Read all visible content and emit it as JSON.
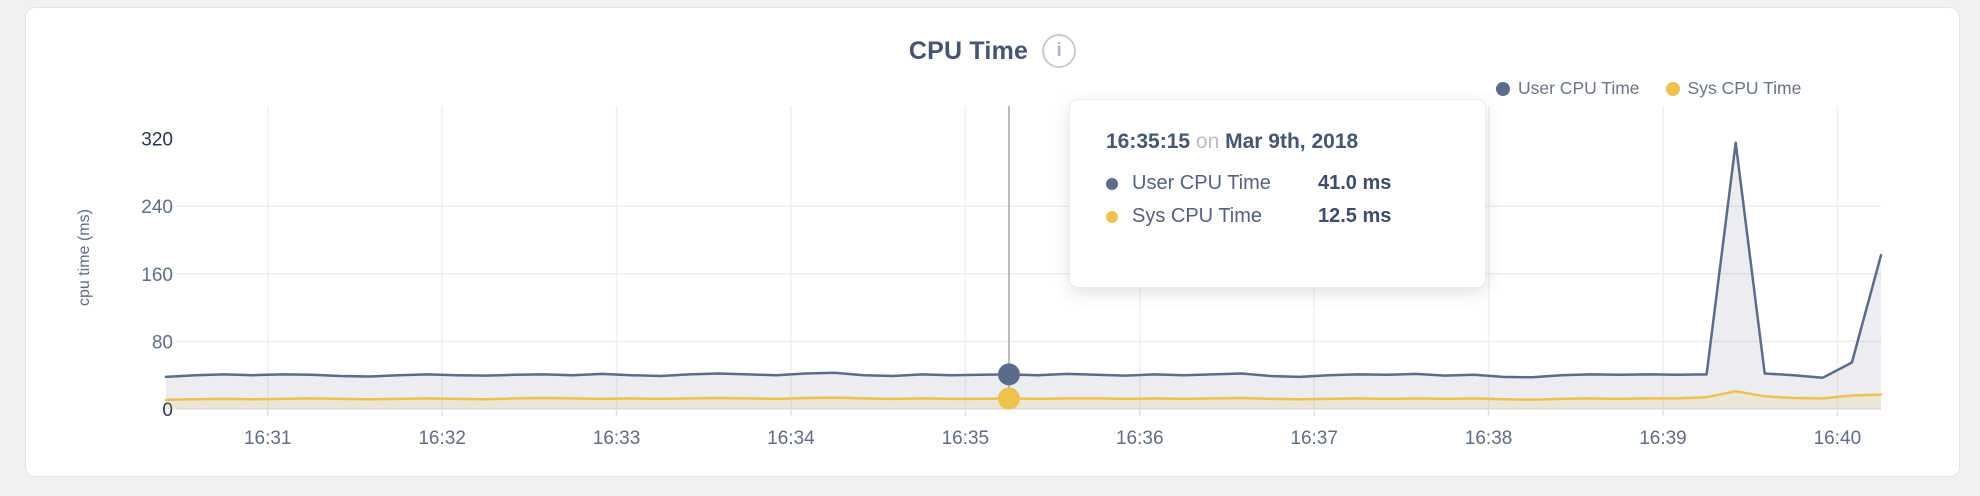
{
  "header": {
    "title": "CPU Time",
    "info_icon": "i"
  },
  "legend": [
    {
      "label": "User CPU Time",
      "color": "#5b6b8c"
    },
    {
      "label": "Sys CPU Time",
      "color": "#eec04d"
    }
  ],
  "tooltip": {
    "time": "16:35:15",
    "on": "on",
    "date": "Mar 9th, 2018",
    "rows": [
      {
        "label": "User CPU Time",
        "value": "41.0 ms",
        "color": "#5b6b8c"
      },
      {
        "label": "Sys CPU Time",
        "value": "12.5 ms",
        "color": "#eec04d"
      }
    ]
  },
  "chart_data": {
    "type": "area",
    "title": "CPU Time",
    "ylabel": "cpu time (ms)",
    "ylim": [
      0,
      320
    ],
    "yticks": [
      {
        "v": 0,
        "label": "0",
        "emph": true
      },
      {
        "v": 80,
        "label": "80",
        "emph": false
      },
      {
        "v": 160,
        "label": "160",
        "emph": false
      },
      {
        "v": 240,
        "label": "240",
        "emph": false
      },
      {
        "v": 320,
        "label": "320",
        "emph": true
      }
    ],
    "xticks": [
      "16:31",
      "16:32",
      "16:33",
      "16:34",
      "16:35",
      "16:36",
      "16:37",
      "16:38",
      "16:39",
      "16:40"
    ],
    "grid": true,
    "legend_position": "top-right",
    "highlight": {
      "time": "16:35:15",
      "user": 41.0,
      "sys": 12.5
    },
    "times": [
      "16:30:25",
      "16:30:35",
      "16:30:45",
      "16:30:55",
      "16:31:05",
      "16:31:15",
      "16:31:25",
      "16:31:35",
      "16:31:45",
      "16:31:55",
      "16:32:05",
      "16:32:15",
      "16:32:25",
      "16:32:35",
      "16:32:45",
      "16:32:55",
      "16:33:05",
      "16:33:15",
      "16:33:25",
      "16:33:35",
      "16:33:45",
      "16:33:55",
      "16:34:05",
      "16:34:15",
      "16:34:25",
      "16:34:35",
      "16:34:45",
      "16:34:55",
      "16:35:05",
      "16:35:15",
      "16:35:25",
      "16:35:35",
      "16:35:45",
      "16:35:55",
      "16:36:05",
      "16:36:15",
      "16:36:25",
      "16:36:35",
      "16:36:45",
      "16:36:55",
      "16:37:05",
      "16:37:15",
      "16:37:25",
      "16:37:35",
      "16:37:45",
      "16:37:55",
      "16:38:05",
      "16:38:15",
      "16:38:25",
      "16:38:35",
      "16:38:45",
      "16:38:55",
      "16:39:05",
      "16:39:15",
      "16:39:25",
      "16:39:35",
      "16:39:45",
      "16:39:55",
      "16:40:05",
      "16:40:15"
    ],
    "series": [
      {
        "name": "User CPU Time",
        "color": "#5b6b8c",
        "fill": "rgba(91,107,140,0.12)",
        "values": [
          38,
          40,
          41,
          40,
          41,
          40.5,
          39,
          38.5,
          40,
          41,
          40,
          39.5,
          40.5,
          41,
          40,
          41.5,
          40,
          39,
          41,
          42,
          41,
          40,
          42,
          43,
          40,
          39,
          41,
          40,
          40.5,
          41,
          40,
          41.5,
          40.5,
          39.5,
          41,
          40,
          41,
          42,
          39,
          38,
          40,
          41,
          40.5,
          41.5,
          39.5,
          40.5,
          38,
          37.5,
          40,
          41,
          40.5,
          41,
          40.5,
          41,
          315,
          42,
          40,
          37,
          55,
          182
        ]
      },
      {
        "name": "Sys CPU Time",
        "color": "#eec04d",
        "fill": "rgba(238,192,77,0.15)",
        "values": [
          11,
          11.5,
          12,
          11.5,
          12,
          12.5,
          12,
          11.5,
          12,
          12.5,
          12,
          11.5,
          12.5,
          13,
          12.5,
          12,
          12.5,
          12,
          12.5,
          13,
          12.5,
          12,
          13,
          13.5,
          12.5,
          12,
          12.5,
          12,
          12,
          12.5,
          12,
          12.5,
          12.5,
          12,
          12.5,
          12,
          12.5,
          13,
          12,
          11.5,
          12,
          12.5,
          12,
          12.5,
          12,
          12.5,
          11.5,
          11,
          12,
          12.5,
          12,
          12.5,
          12.5,
          14,
          21,
          15,
          13,
          12.5,
          16,
          17
        ]
      }
    ]
  }
}
